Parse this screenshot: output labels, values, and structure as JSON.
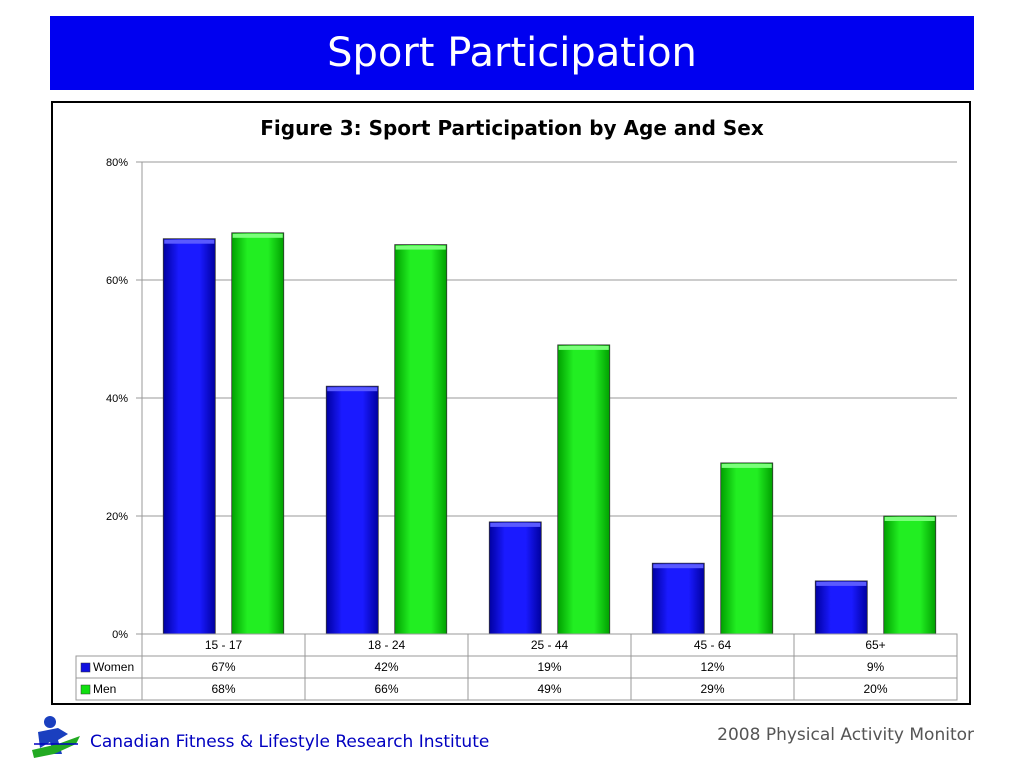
{
  "slide_title": "Sport Participation",
  "footer": {
    "organization": "Canadian Fitness & Lifestyle Research Institute",
    "source": "2008 Physical Activity Monitor"
  },
  "colors": {
    "title_bar": "#0000f0",
    "women": "#1010e0",
    "men": "#10e010"
  },
  "chart_data": {
    "type": "bar",
    "title": "Figure 3: Sport Participation by Age and Sex",
    "categories": [
      "15 - 17",
      "18 - 24",
      "25 - 44",
      "45 - 64",
      "65+"
    ],
    "series": [
      {
        "name": "Women",
        "values": [
          67,
          42,
          19,
          12,
          9
        ],
        "labels": [
          "67%",
          "42%",
          "19%",
          "12%",
          "9%"
        ]
      },
      {
        "name": "Men",
        "values": [
          68,
          66,
          49,
          29,
          20
        ],
        "labels": [
          "68%",
          "66%",
          "49%",
          "29%",
          "20%"
        ]
      }
    ],
    "ylim": [
      0,
      80
    ],
    "yticks": [
      "0%",
      "20%",
      "40%",
      "60%",
      "80%"
    ],
    "ytick_values": [
      0,
      20,
      40,
      60,
      80
    ],
    "grid": true,
    "legend": "data-table"
  }
}
